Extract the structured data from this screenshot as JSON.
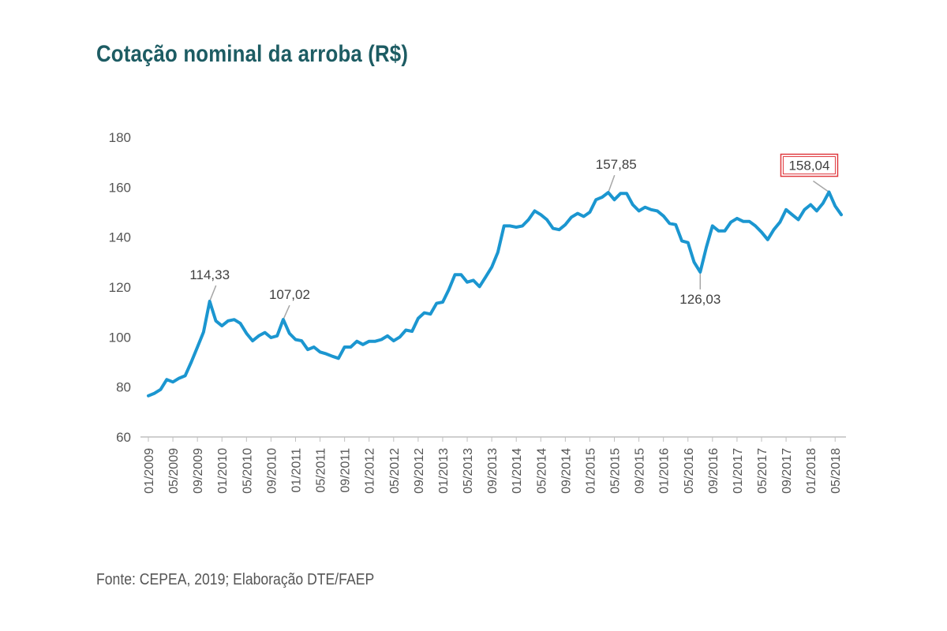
{
  "title": "Cotação nominal da arroba (R$)",
  "source": "Fonte: CEPEA, 2019; Elaboração DTE/FAEP",
  "colors": {
    "line": "#1b96d0",
    "title": "#1d5c63",
    "highlight_box": "#e0393e",
    "leader": "#a6a6a6",
    "axis": "#bfbfbf"
  },
  "chart_data": {
    "type": "line",
    "title": "Cotação nominal da arroba (R$)",
    "xlabel": "",
    "ylabel": "",
    "ylim": [
      60,
      180
    ],
    "yticks": [
      "60",
      "80",
      "100",
      "120",
      "140",
      "160",
      "180"
    ],
    "grid": false,
    "x_tick_labels": [
      "01/2009",
      "05/2009",
      "09/2009",
      "01/2010",
      "05/2010",
      "09/2010",
      "01/2011",
      "05/2011",
      "09/2011",
      "01/2012",
      "05/2012",
      "09/2012",
      "01/2013",
      "05/2013",
      "09/2013",
      "01/2014",
      "05/2014",
      "09/2014",
      "01/2015",
      "05/2015",
      "09/2015",
      "01/2016",
      "05/2016",
      "09/2016",
      "01/2017",
      "05/2017",
      "09/2017",
      "01/2018",
      "05/2018"
    ],
    "series": [
      {
        "values": [
          76.5,
          77.5,
          79,
          83,
          82,
          83.5,
          84.5,
          90,
          96,
          102,
          114.33,
          106.5,
          104.5,
          106.5,
          107,
          105.5,
          101.5,
          98.5,
          100.5,
          101.8,
          99.8,
          100.5,
          107.02,
          101.5,
          99,
          98.5,
          95,
          96,
          94,
          93.3,
          92.3,
          91.5,
          96,
          96,
          98.3,
          97,
          98.3,
          98.3,
          99,
          100.5,
          98.5,
          100,
          102.8,
          102.3,
          107.5,
          109.7,
          109.2,
          113.5,
          114,
          119,
          125,
          125,
          122,
          122.7,
          120.2,
          124,
          128,
          134,
          144.5,
          144.5,
          144,
          144.5,
          147,
          150.5,
          149,
          147,
          143.5,
          143,
          145,
          148,
          149.5,
          148.3,
          150,
          155,
          156,
          157.85,
          155,
          157.5,
          157.5,
          153,
          150.5,
          152,
          151,
          150.5,
          148.5,
          145.5,
          145,
          138.5,
          137.8,
          130,
          126.03,
          136,
          144.5,
          142.5,
          142.5,
          146,
          147.5,
          146.3,
          146.3,
          144.5,
          142,
          139,
          143,
          146,
          151,
          149,
          147,
          151,
          153,
          150.5,
          153.5,
          158.04,
          152.5,
          149
        ]
      }
    ],
    "annotations": [
      {
        "label": "114,33",
        "highlight": false
      },
      {
        "label": "107,02",
        "highlight": false
      },
      {
        "label": "157,85",
        "highlight": false
      },
      {
        "label": "126,03",
        "highlight": false
      },
      {
        "label": "158,04",
        "highlight": true
      }
    ]
  }
}
